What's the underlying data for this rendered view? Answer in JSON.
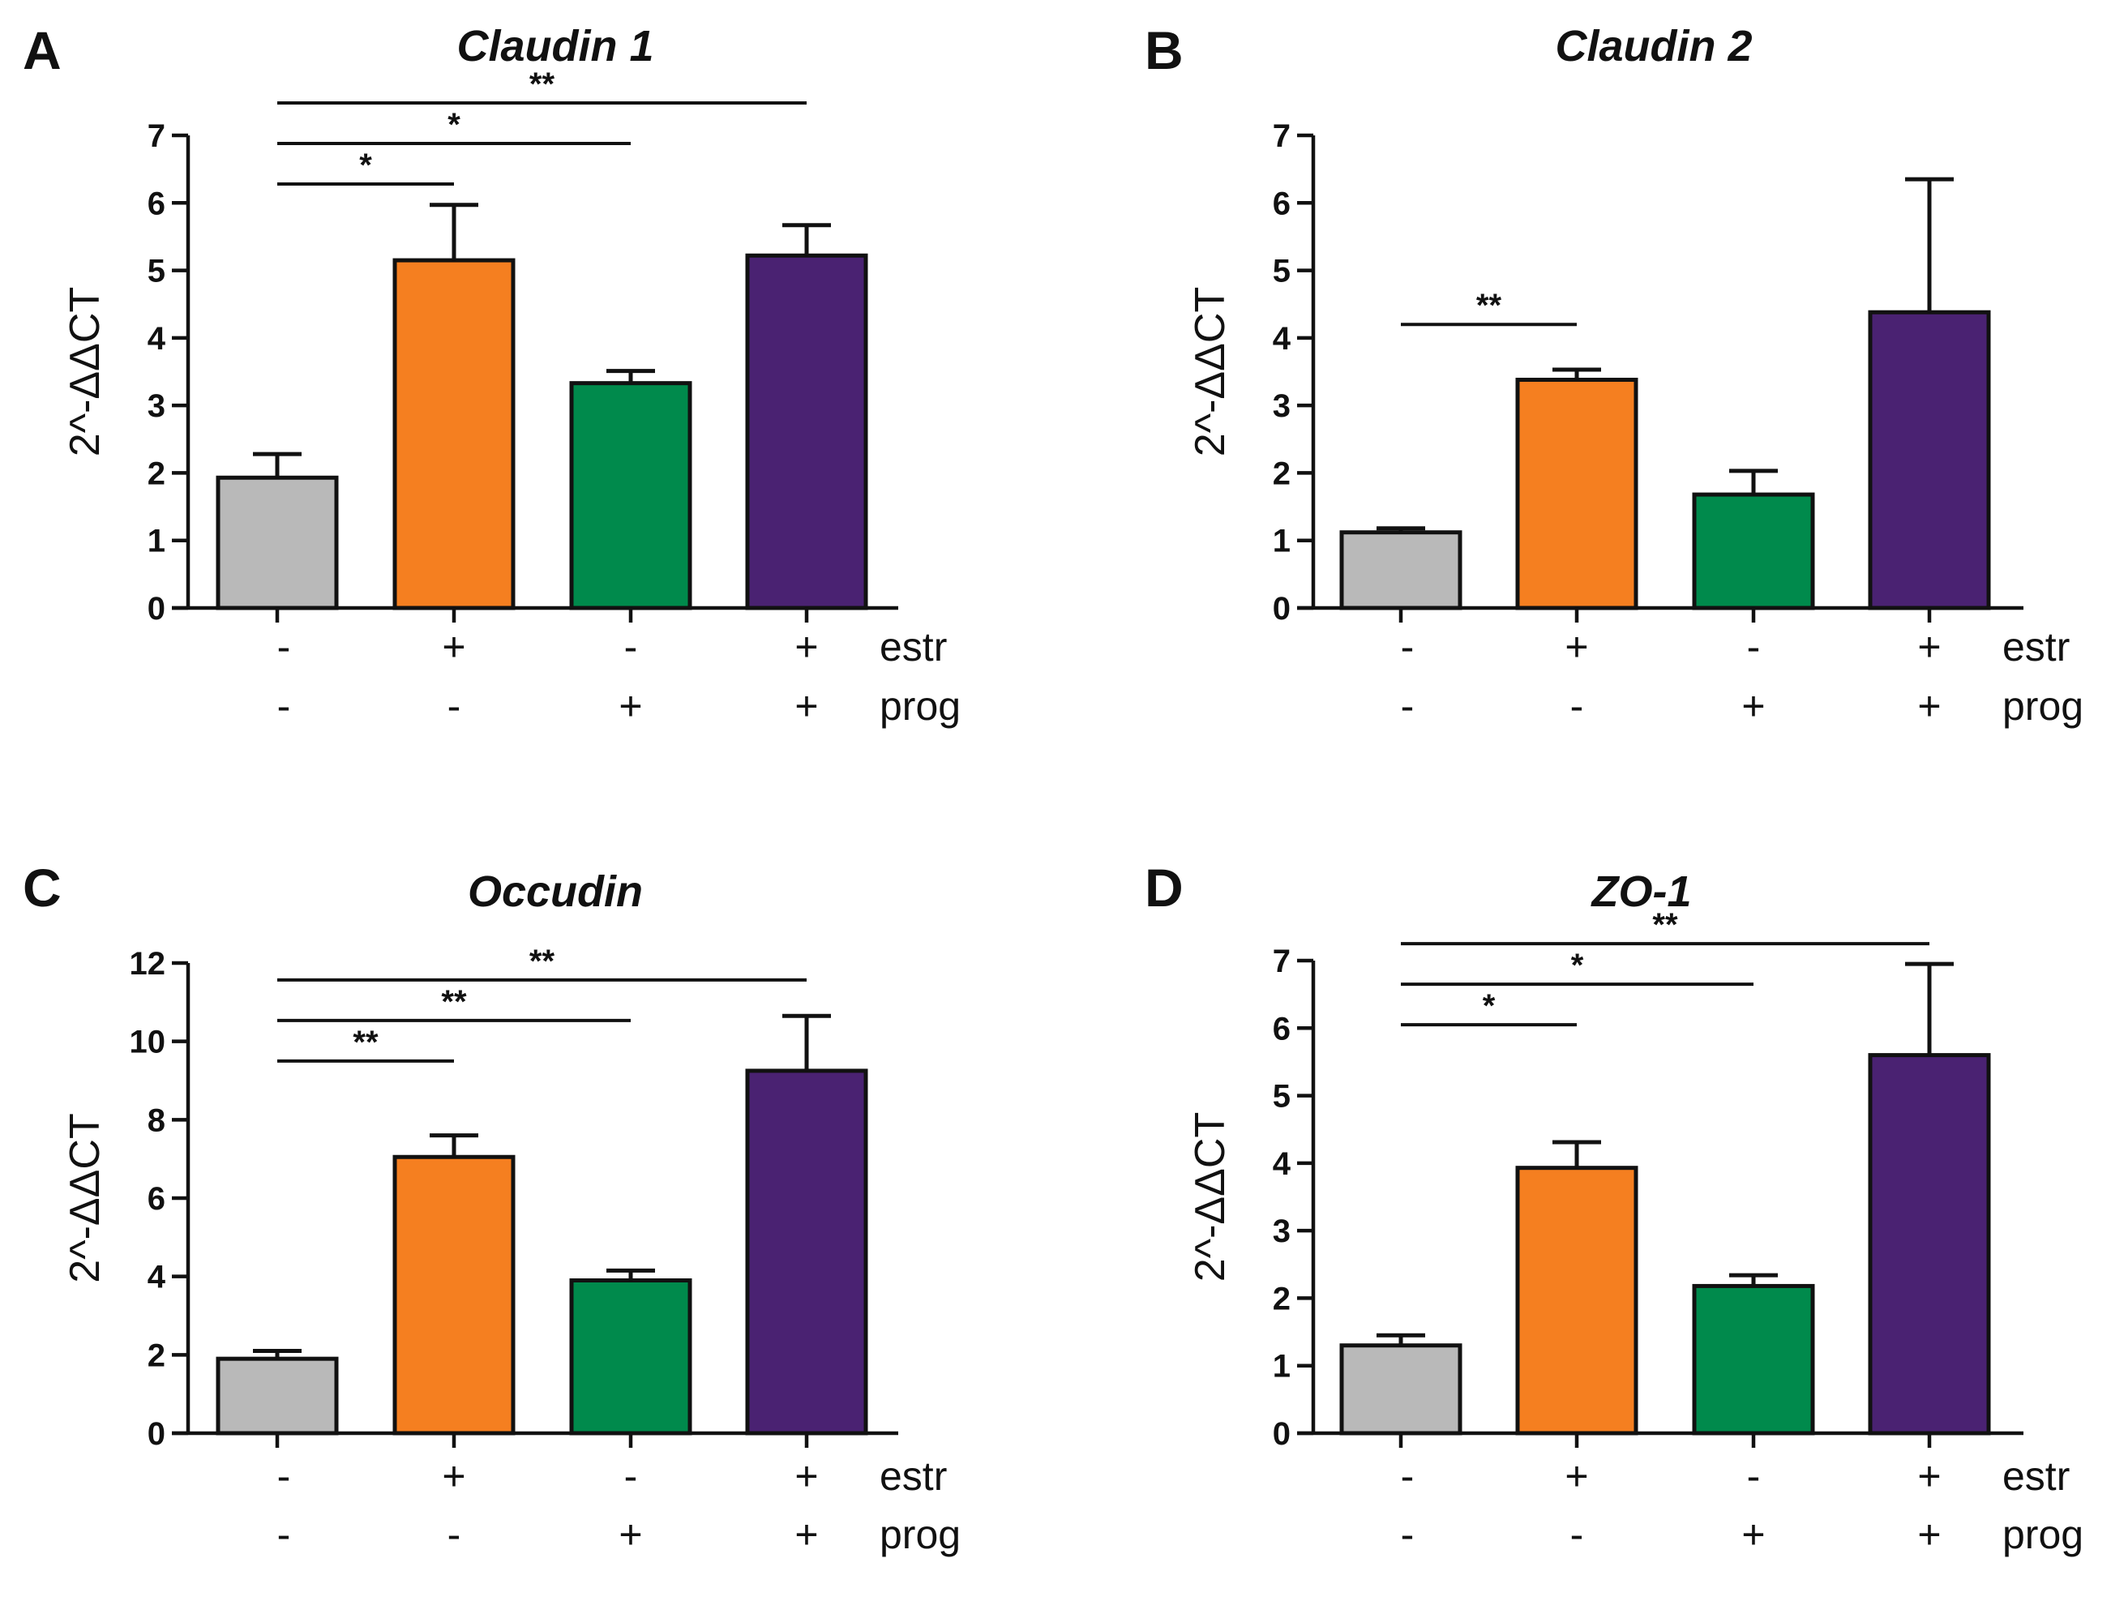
{
  "figure": {
    "bar_colors": [
      "#b9b9b9",
      "#f57f20",
      "#008a4c",
      "#4a2272"
    ],
    "condition_rows": [
      {
        "name": "estr",
        "signs": [
          "-",
          "+",
          "-",
          "+"
        ]
      },
      {
        "name": "prog",
        "signs": [
          "-",
          "-",
          "+",
          "+"
        ]
      }
    ]
  },
  "chart_data": [
    {
      "panel": "A",
      "type": "bar",
      "title": "Claudin 1",
      "ylabel": "2^-ΔΔCT",
      "ylim": [
        0,
        7
      ],
      "yticks": [
        0,
        1,
        2,
        3,
        4,
        5,
        6,
        7
      ],
      "values": [
        1.93,
        5.15,
        3.33,
        5.22
      ],
      "errors": [
        0.35,
        0.82,
        0.18,
        0.45
      ],
      "significance": [
        {
          "from": 0,
          "to": 1,
          "label": "*"
        },
        {
          "from": 0,
          "to": 2,
          "label": "*"
        },
        {
          "from": 0,
          "to": 3,
          "label": "**"
        }
      ]
    },
    {
      "panel": "B",
      "type": "bar",
      "title": "Claudin 2",
      "ylabel": "2^-ΔΔCT",
      "ylim": [
        0,
        7
      ],
      "yticks": [
        0,
        1,
        2,
        3,
        4,
        5,
        6,
        7
      ],
      "values": [
        1.12,
        3.38,
        1.68,
        4.38
      ],
      "errors": [
        0.06,
        0.15,
        0.35,
        1.97
      ],
      "significance": [
        {
          "from": 0,
          "to": 1,
          "label": "**"
        }
      ]
    },
    {
      "panel": "C",
      "type": "bar",
      "title": "Occudin",
      "ylabel": "2^-ΔΔCT",
      "ylim": [
        0,
        12
      ],
      "yticks": [
        0,
        2,
        4,
        6,
        8,
        10,
        12
      ],
      "values": [
        1.9,
        7.05,
        3.9,
        9.25
      ],
      "errors": [
        0.2,
        0.55,
        0.25,
        1.4
      ],
      "significance": [
        {
          "from": 0,
          "to": 1,
          "label": "**"
        },
        {
          "from": 0,
          "to": 2,
          "label": "**"
        },
        {
          "from": 0,
          "to": 3,
          "label": "**"
        }
      ]
    },
    {
      "panel": "D",
      "type": "bar",
      "title": "ZO-1",
      "ylabel": "2^-ΔΔCT",
      "ylim": [
        0,
        7
      ],
      "yticks": [
        0,
        1,
        2,
        3,
        4,
        5,
        6,
        7
      ],
      "values": [
        1.3,
        3.93,
        2.18,
        5.6
      ],
      "errors": [
        0.15,
        0.38,
        0.16,
        1.35
      ],
      "significance": [
        {
          "from": 0,
          "to": 1,
          "label": "*"
        },
        {
          "from": 0,
          "to": 2,
          "label": "*"
        },
        {
          "from": 0,
          "to": 3,
          "label": "**"
        }
      ]
    }
  ]
}
